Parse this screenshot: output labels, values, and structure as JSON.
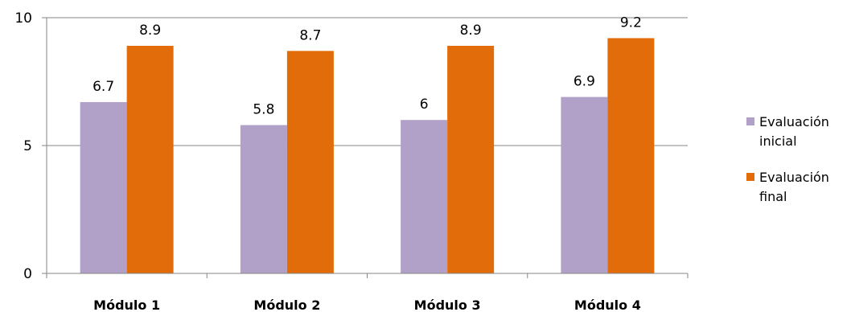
{
  "chart_data": {
    "type": "bar",
    "categories": [
      "Módulo 1",
      "Módulo 2",
      "Módulo 3",
      "Módulo 4"
    ],
    "series": [
      {
        "name": "Evaluación inicial",
        "legend_lines": [
          "Evaluación",
          "inicial"
        ],
        "values": [
          6.7,
          5.8,
          6,
          6.9
        ],
        "labels": [
          "6.7",
          "5.8",
          "6",
          "6.9"
        ],
        "color": "#b1a0c7"
      },
      {
        "name": "Evaluación final",
        "legend_lines": [
          "Evaluación",
          "final"
        ],
        "values": [
          8.9,
          8.7,
          8.9,
          9.2
        ],
        "labels": [
          "8.9",
          "8.7",
          "8.9",
          "9.2"
        ],
        "color": "#e36c0a"
      }
    ],
    "ylim": [
      0,
      10
    ],
    "yticks": [
      0,
      5,
      10
    ],
    "ytick_labels": [
      "0",
      "5",
      "10"
    ],
    "title": "",
    "xlabel": "",
    "ylabel": "",
    "grid": true,
    "legend_position": "right",
    "colors": {
      "gridline": "#868686",
      "background": "#ffffff"
    }
  }
}
